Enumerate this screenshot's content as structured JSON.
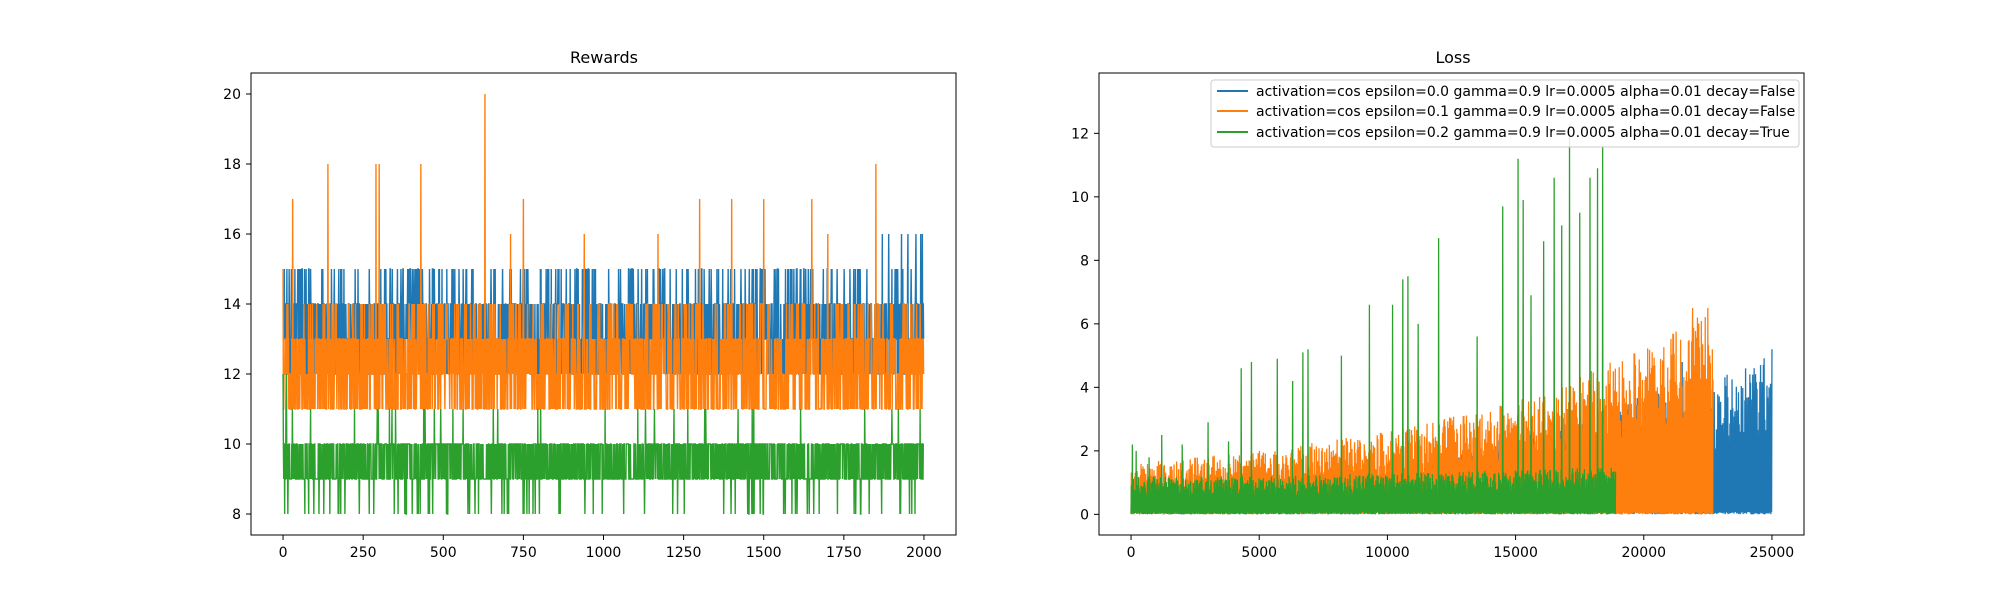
{
  "chart_data": [
    {
      "type": "line",
      "title": "Rewards",
      "xlabel": "",
      "ylabel": "",
      "xlim": [
        -100,
        2100
      ],
      "ylim": [
        7.4,
        20.6
      ],
      "xticks": [
        0,
        250,
        500,
        750,
        1000,
        1250,
        1500,
        1750,
        2000
      ],
      "xtick_labels": [
        "0",
        "250",
        "500",
        "750",
        "1000",
        "1250",
        "1500",
        "1750",
        "2000"
      ],
      "yticks": [
        8,
        10,
        12,
        14,
        16,
        18,
        20
      ],
      "ytick_labels": [
        "8",
        "10",
        "12",
        "14",
        "16",
        "18",
        "20"
      ],
      "grid": false,
      "legend": false,
      "series": [
        {
          "color": "#1f77b4",
          "n_points": 2000,
          "baseline_band": [
            12,
            14
          ],
          "upper_band_max": 15,
          "peaks": [
            [
              1870,
              16
            ],
            [
              1890,
              16
            ],
            [
              1930,
              16
            ],
            [
              1950,
              16
            ],
            [
              1975,
              16
            ],
            [
              1990,
              16
            ],
            [
              1995,
              16
            ]
          ]
        },
        {
          "color": "#ff7f0e",
          "n_points": 2000,
          "baseline_band": [
            11,
            13
          ],
          "upper_band_max": 14,
          "peaks": [
            [
              0,
              15
            ],
            [
              30,
              17
            ],
            [
              140,
              18
            ],
            [
              290,
              18
            ],
            [
              300,
              18
            ],
            [
              430,
              18
            ],
            [
              630,
              20
            ],
            [
              710,
              16
            ],
            [
              750,
              17
            ],
            [
              940,
              16
            ],
            [
              1170,
              16
            ],
            [
              1300,
              17
            ],
            [
              1400,
              17
            ],
            [
              1500,
              17
            ],
            [
              1650,
              17
            ],
            [
              1700,
              16
            ],
            [
              1850,
              18
            ]
          ]
        },
        {
          "color": "#2ca02c",
          "n_points": 2000,
          "baseline_band": [
            9,
            10
          ],
          "lower_band_min": 8,
          "peaks": [
            [
              0,
              12
            ],
            [
              10,
              12
            ]
          ]
        }
      ]
    },
    {
      "type": "line",
      "title": "Loss",
      "xlabel": "",
      "ylabel": "",
      "xlim": [
        -1250,
        26250
      ],
      "ylim": [
        -0.65,
        13.9
      ],
      "xticks": [
        0,
        5000,
        10000,
        15000,
        20000,
        25000
      ],
      "xtick_labels": [
        "0",
        "5000",
        "10000",
        "15000",
        "20000",
        "25000"
      ],
      "yticks": [
        0,
        2,
        4,
        6,
        8,
        10,
        12
      ],
      "ytick_labels": [
        "0",
        "2",
        "4",
        "6",
        "8",
        "10",
        "12"
      ],
      "grid": false,
      "legend": "upper right",
      "series": [
        {
          "name": "activation=cos epsilon=0.0 gamma=0.9 lr=0.0005 alpha=0.01 decay=False",
          "color": "#1f77b4",
          "x_end": 25000,
          "envelope": [
            [
              0,
              0.8
            ],
            [
              5000,
              0.9
            ],
            [
              10000,
              1.3
            ],
            [
              15000,
              2.5
            ],
            [
              20000,
              3.8
            ],
            [
              22700,
              4.3
            ],
            [
              25000,
              5.2
            ]
          ],
          "peaks": [
            [
              16500,
              3.1
            ],
            [
              21500,
              4.8
            ],
            [
              25000,
              5.2
            ]
          ]
        },
        {
          "name": "activation=cos epsilon=0.1 gamma=0.9 lr=0.0005 alpha=0.01 decay=False",
          "color": "#ff7f0e",
          "x_end": 22700,
          "envelope": [
            [
              0,
              1.6
            ],
            [
              5000,
              2.0
            ],
            [
              10000,
              2.6
            ],
            [
              15000,
              3.6
            ],
            [
              20000,
              5.2
            ],
            [
              22700,
              6.5
            ]
          ],
          "peaks": [
            [
              21900,
              6.5
            ],
            [
              22500,
              6.5
            ]
          ]
        },
        {
          "name": "activation=cos epsilon=0.2 gamma=0.9 lr=0.0005 alpha=0.01 decay=True",
          "color": "#2ca02c",
          "x_end": 18900,
          "envelope": [
            [
              0,
              1.2
            ],
            [
              5000,
              1.2
            ],
            [
              10000,
              1.3
            ],
            [
              15000,
              1.4
            ],
            [
              18900,
              1.5
            ]
          ],
          "peaks": [
            [
              50,
              2.2
            ],
            [
              200,
              2.0
            ],
            [
              700,
              1.8
            ],
            [
              1200,
              2.5
            ],
            [
              2000,
              2.2
            ],
            [
              3000,
              2.9
            ],
            [
              3800,
              2.3
            ],
            [
              4300,
              4.6
            ],
            [
              4700,
              4.8
            ],
            [
              5700,
              4.9
            ],
            [
              6300,
              4.2
            ],
            [
              6700,
              5.1
            ],
            [
              6900,
              5.2
            ],
            [
              8200,
              5.0
            ],
            [
              9300,
              6.6
            ],
            [
              10200,
              6.6
            ],
            [
              10600,
              7.4
            ],
            [
              10800,
              7.5
            ],
            [
              11200,
              6.0
            ],
            [
              12000,
              8.7
            ],
            [
              13500,
              5.6
            ],
            [
              14500,
              9.7
            ],
            [
              15100,
              11.2
            ],
            [
              15300,
              9.9
            ],
            [
              15600,
              6.9
            ],
            [
              16100,
              8.6
            ],
            [
              16500,
              10.6
            ],
            [
              16800,
              9.1
            ],
            [
              17100,
              12.3
            ],
            [
              17500,
              9.5
            ],
            [
              17900,
              10.6
            ],
            [
              18200,
              10.9
            ],
            [
              18400,
              11.6
            ]
          ]
        }
      ]
    }
  ]
}
